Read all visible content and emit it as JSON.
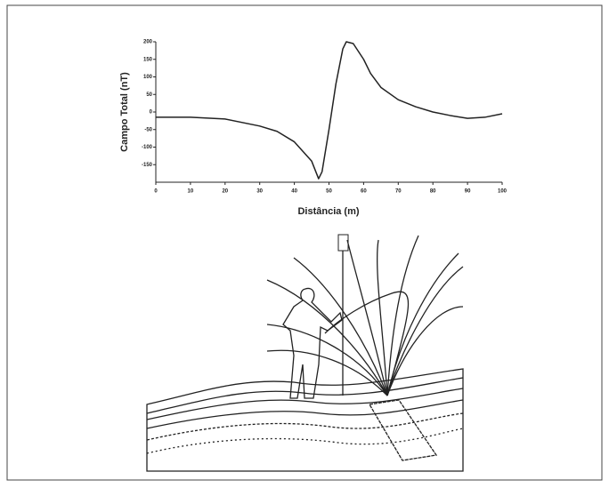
{
  "chart_data": {
    "type": "line",
    "xlabel": "Distância (m)",
    "ylabel": "Campo Total (nT)",
    "x": [
      0,
      10,
      20,
      30,
      35,
      40,
      45,
      47,
      48,
      50,
      52,
      54,
      55,
      57,
      60,
      62,
      65,
      70,
      75,
      80,
      85,
      90,
      95,
      100
    ],
    "series": [
      {
        "color": "#222222",
        "values": [
          -15,
          -15,
          -20,
          -40,
          -55,
          -85,
          -140,
          -190,
          -170,
          -50,
          80,
          180,
          200,
          195,
          150,
          110,
          70,
          35,
          15,
          0,
          -10,
          -18,
          -15,
          -5
        ]
      }
    ],
    "xlim": [
      0,
      100
    ],
    "xticks": [
      0,
      10,
      20,
      30,
      40,
      50,
      60,
      70,
      80,
      90,
      100
    ],
    "ylim": [
      -200,
      200
    ],
    "yticks": [
      -150,
      -100,
      -50,
      0,
      50,
      100,
      150,
      200
    ]
  }
}
